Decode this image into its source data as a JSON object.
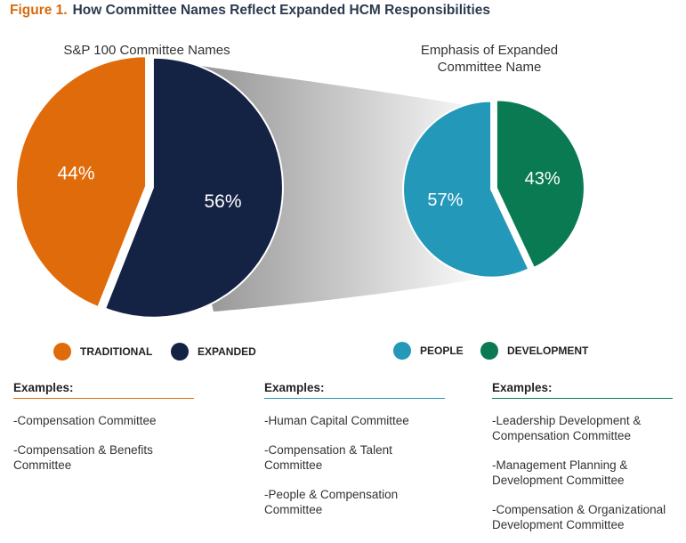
{
  "figure": {
    "label": "Figure 1.",
    "title": "How Committee Names Reflect Expanded HCM Responsibilities"
  },
  "chart_data": [
    {
      "type": "pie",
      "title": "S&P 100 Committee Names",
      "slices": [
        {
          "label": "TRADITIONAL",
          "value": 44,
          "display": "44%",
          "color": "#e06b0a"
        },
        {
          "label": "EXPANDED",
          "value": 56,
          "display": "56%",
          "color": "#142244"
        }
      ]
    },
    {
      "type": "pie",
      "title": "Emphasis of Expanded Committee Name",
      "slices": [
        {
          "label": "PEOPLE",
          "value": 57,
          "display": "57%",
          "color": "#2398b9"
        },
        {
          "label": "DEVELOPMENT",
          "value": 43,
          "display": "43%",
          "color": "#0a7a52"
        }
      ]
    }
  ],
  "examples": [
    {
      "heading": "Examples:",
      "color": "#e06b0a",
      "items": [
        "-Compensation Committee",
        "-Compensation & Benefits Committee"
      ]
    },
    {
      "heading": "Examples:",
      "color": "#2398b9",
      "items": [
        "-Human Capital Committee",
        "-Compensation & Talent Committee",
        "-People & Compensation Committee"
      ]
    },
    {
      "heading": "Examples:",
      "color": "#0a7a52",
      "items": [
        "-Leadership Development & Compensation Committee",
        "-Management Planning & Development Committee",
        "-Compensation & Organizational Development Committee"
      ]
    }
  ]
}
